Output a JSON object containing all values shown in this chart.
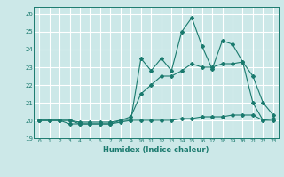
{
  "xlabel": "Humidex (Indice chaleur)",
  "ylabel": "",
  "background_color": "#cce8e8",
  "grid_color": "#ffffff",
  "line_color": "#1a7a6e",
  "xlim": [
    -0.5,
    23.5
  ],
  "ylim": [
    19,
    26.4
  ],
  "yticks": [
    19,
    20,
    21,
    22,
    23,
    24,
    25,
    26
  ],
  "xticks": [
    0,
    1,
    2,
    3,
    4,
    5,
    6,
    7,
    8,
    9,
    10,
    11,
    12,
    13,
    14,
    15,
    16,
    17,
    18,
    19,
    20,
    21,
    22,
    23
  ],
  "series": {
    "max": [
      20.0,
      20.0,
      20.0,
      20.0,
      19.8,
      19.8,
      19.8,
      19.8,
      20.0,
      20.0,
      23.5,
      22.8,
      23.5,
      22.8,
      25.0,
      25.8,
      24.2,
      22.9,
      24.5,
      24.3,
      23.3,
      21.0,
      20.0,
      20.1
    ],
    "mean": [
      20.0,
      20.0,
      20.0,
      20.0,
      19.9,
      19.9,
      19.9,
      19.9,
      20.0,
      20.2,
      21.5,
      22.0,
      22.5,
      22.5,
      22.8,
      23.2,
      23.0,
      23.0,
      23.2,
      23.2,
      23.3,
      22.5,
      21.0,
      20.3
    ],
    "min": [
      20.0,
      20.0,
      20.0,
      19.8,
      19.8,
      19.8,
      19.8,
      19.8,
      19.9,
      20.0,
      20.0,
      20.0,
      20.0,
      20.0,
      20.1,
      20.1,
      20.2,
      20.2,
      20.2,
      20.3,
      20.3,
      20.3,
      20.0,
      20.0
    ]
  }
}
